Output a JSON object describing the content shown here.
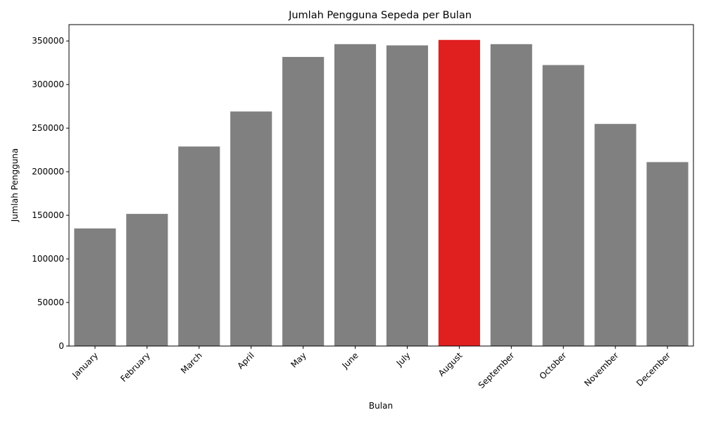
{
  "chart_data": {
    "type": "bar",
    "title": "Jumlah Pengguna Sepeda per Bulan",
    "xlabel": "Bulan",
    "ylabel": "Jumlah Pengguna",
    "categories": [
      "January",
      "February",
      "March",
      "April",
      "May",
      "June",
      "July",
      "August",
      "September",
      "October",
      "November",
      "December"
    ],
    "values": [
      134933,
      151616,
      228920,
      269094,
      331686,
      346342,
      344948,
      351194,
      346342,
      322352,
      254831,
      211036
    ],
    "ylim": [
      0,
      368754
    ],
    "yticks": [
      0,
      50000,
      100000,
      150000,
      200000,
      250000,
      300000,
      350000
    ],
    "ytick_labels": [
      "0",
      "50000",
      "100000",
      "150000",
      "200000",
      "250000",
      "300000",
      "350000"
    ],
    "grid": false,
    "colors": {
      "default": "#808080",
      "highlight": "#e01f1f"
    },
    "highlight_category": "August"
  }
}
